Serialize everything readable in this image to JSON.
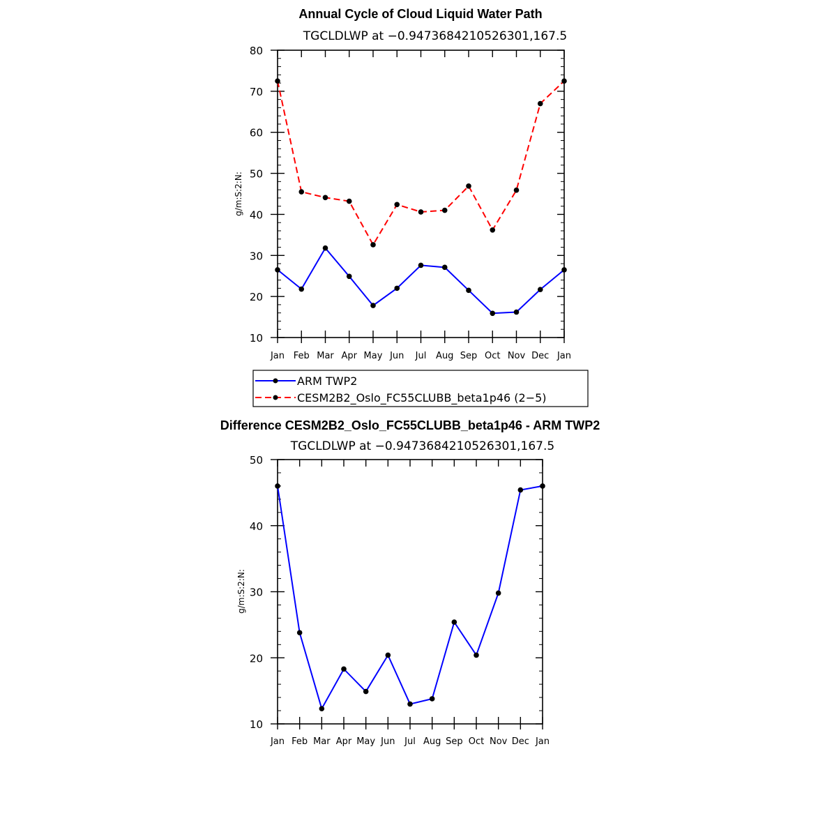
{
  "chart_data": [
    {
      "type": "line",
      "title": "Annual Cycle of Cloud Liquid Water Path",
      "subtitle": "TGCLDLWP at −0.9473684210526301,167.5",
      "ylabel": "g/m:S:2:N:",
      "ylim": [
        10,
        80
      ],
      "yticks": [
        10,
        20,
        30,
        40,
        50,
        60,
        70,
        80
      ],
      "categories": [
        "Jan",
        "Feb",
        "Mar",
        "Apr",
        "May",
        "Jun",
        "Jul",
        "Aug",
        "Sep",
        "Oct",
        "Nov",
        "Dec",
        "Jan"
      ],
      "series": [
        {
          "name": "ARM TWP2",
          "color": "#0000ff",
          "dash": "solid",
          "values": [
            26.5,
            21.8,
            31.8,
            24.9,
            17.8,
            22.0,
            27.6,
            27.1,
            21.5,
            15.9,
            16.2,
            21.7,
            26.5
          ]
        },
        {
          "name": "CESM2B2_Oslo_FC55CLUBB_beta1p46 (2−5)",
          "color": "#ff0000",
          "dash": "dashed",
          "values": [
            72.5,
            45.5,
            44.1,
            43.2,
            32.6,
            42.4,
            40.6,
            41.0,
            46.9,
            36.2,
            45.9,
            67.0,
            72.5
          ]
        }
      ],
      "legend": {
        "placement": "bottom-center"
      },
      "grid": false
    },
    {
      "type": "line",
      "title": "Difference CESM2B2_Oslo_FC55CLUBB_beta1p46 - ARM TWP2",
      "subtitle": "TGCLDLWP at −0.9473684210526301,167.5",
      "ylabel": "g/m:S:2:N:",
      "ylim": [
        10,
        50
      ],
      "yticks": [
        10,
        20,
        30,
        40,
        50
      ],
      "categories": [
        "Jan",
        "Feb",
        "Mar",
        "Apr",
        "May",
        "Jun",
        "Jul",
        "Aug",
        "Sep",
        "Oct",
        "Nov",
        "Dec",
        "Jan"
      ],
      "series": [
        {
          "color": "#0000ff",
          "dash": "solid",
          "values": [
            46.0,
            23.8,
            12.3,
            18.3,
            14.9,
            20.4,
            13.0,
            13.8,
            25.4,
            20.4,
            29.8,
            45.4,
            46.0
          ]
        }
      ],
      "grid": false
    }
  ]
}
